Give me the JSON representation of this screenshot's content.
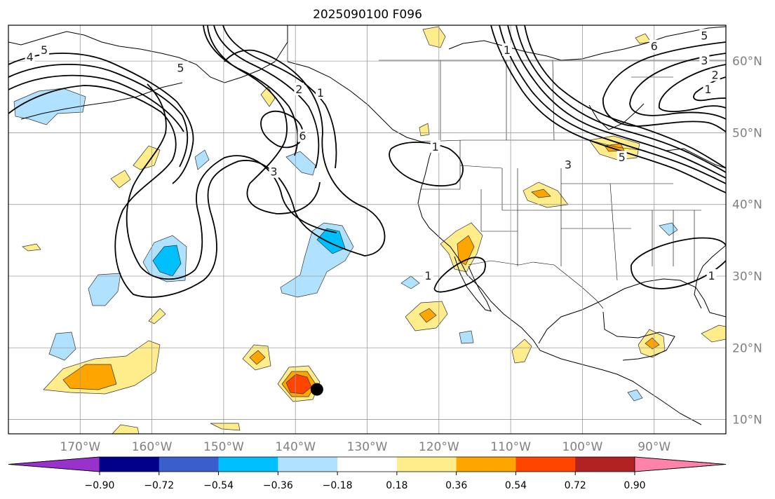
{
  "title": "2025090100 F096",
  "map": {
    "lon_range": [
      -180,
      -80
    ],
    "lat_range": [
      8,
      65
    ],
    "lon_ticks": [
      {
        "value": -170,
        "label": "170°W"
      },
      {
        "value": -160,
        "label": "160°W"
      },
      {
        "value": -150,
        "label": "150°W"
      },
      {
        "value": -140,
        "label": "140°W"
      },
      {
        "value": -130,
        "label": "130°W"
      },
      {
        "value": -120,
        "label": "120°W"
      },
      {
        "value": -110,
        "label": "110°W"
      },
      {
        "value": -100,
        "label": "100°W"
      },
      {
        "value": -90,
        "label": "90°W"
      }
    ],
    "lat_ticks": [
      {
        "value": 10,
        "label": "10°N"
      },
      {
        "value": 20,
        "label": "20°N"
      },
      {
        "value": 30,
        "label": "30°N"
      },
      {
        "value": 40,
        "label": "40°N"
      },
      {
        "value": 50,
        "label": "50°N"
      },
      {
        "value": 60,
        "label": "60°N"
      }
    ],
    "contour_labels": [
      {
        "text": "4",
        "lon": -177,
        "lat": 60.5
      },
      {
        "text": "5",
        "lon": -175,
        "lat": 61.5
      },
      {
        "text": "5",
        "lon": -156,
        "lat": 59
      },
      {
        "text": "2",
        "lon": -139.5,
        "lat": 56
      },
      {
        "text": "1",
        "lon": -136.5,
        "lat": 55.5
      },
      {
        "text": "6",
        "lon": -139,
        "lat": 49.5
      },
      {
        "text": "3",
        "lon": -143,
        "lat": 44.5
      },
      {
        "text": "1",
        "lon": -120.5,
        "lat": 48
      },
      {
        "text": "1",
        "lon": -121.5,
        "lat": 30
      },
      {
        "text": "1",
        "lon": -110.5,
        "lat": 61.5
      },
      {
        "text": "3",
        "lon": -102,
        "lat": 45.5
      },
      {
        "text": "5",
        "lon": -94.5,
        "lat": 46.5
      },
      {
        "text": "6",
        "lon": -90,
        "lat": 62
      },
      {
        "text": "5",
        "lon": -83,
        "lat": 63.5
      },
      {
        "text": "3",
        "lon": -83,
        "lat": 60
      },
      {
        "text": "2",
        "lon": -81.5,
        "lat": 58
      },
      {
        "text": "1",
        "lon": -82.5,
        "lat": 56
      },
      {
        "text": "1",
        "lon": -82,
        "lat": 30
      }
    ],
    "marker": {
      "name": "storm-center",
      "lon": -137,
      "lat": 14.2,
      "color": "#000000"
    }
  },
  "colorbar": {
    "colors": [
      "#9932cc",
      "#00008b",
      "#3a5fcd",
      "#00bfff",
      "#b0e2ff",
      "#ffffff",
      "#ffec8b",
      "#ffa500",
      "#ff4500",
      "#b22222",
      "#ff82ab"
    ],
    "bounds": [
      "−0.90",
      "−0.72",
      "−0.54",
      "−0.36",
      "−0.18",
      "0.18",
      "0.36",
      "0.54",
      "0.72",
      "0.90"
    ]
  }
}
